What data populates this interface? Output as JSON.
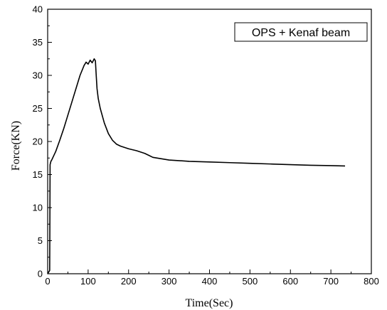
{
  "chart_data": {
    "type": "line",
    "title": "",
    "xlabel": "Time(Sec)",
    "ylabel": "Force(KN)",
    "xlim": [
      0,
      800
    ],
    "ylim": [
      0,
      40
    ],
    "xticks": [
      0,
      100,
      200,
      300,
      400,
      500,
      600,
      700,
      800
    ],
    "yticks": [
      0,
      5,
      10,
      15,
      20,
      25,
      30,
      35,
      40
    ],
    "grid": false,
    "legend_position": "top-right",
    "series": [
      {
        "name": "OPS + Kenaf beam",
        "color": "#000000",
        "x": [
          0,
          3,
          5,
          6,
          8,
          10,
          20,
          30,
          40,
          50,
          60,
          70,
          80,
          90,
          95,
          100,
          105,
          110,
          115,
          118,
          120,
          122,
          125,
          130,
          140,
          150,
          160,
          170,
          180,
          200,
          220,
          240,
          250,
          260,
          280,
          300,
          350,
          400,
          450,
          500,
          550,
          600,
          650,
          700,
          735
        ],
        "y": [
          0,
          0.3,
          0.5,
          16.5,
          17.0,
          17.2,
          18.5,
          20.2,
          22.0,
          24.0,
          26.0,
          28.0,
          30.0,
          31.5,
          32.0,
          31.7,
          32.3,
          31.9,
          32.5,
          32.2,
          30.0,
          28.0,
          26.5,
          25.0,
          22.8,
          21.2,
          20.2,
          19.6,
          19.3,
          18.9,
          18.6,
          18.2,
          17.9,
          17.6,
          17.4,
          17.2,
          17.0,
          16.9,
          16.8,
          16.7,
          16.6,
          16.5,
          16.4,
          16.35,
          16.3
        ]
      }
    ]
  }
}
